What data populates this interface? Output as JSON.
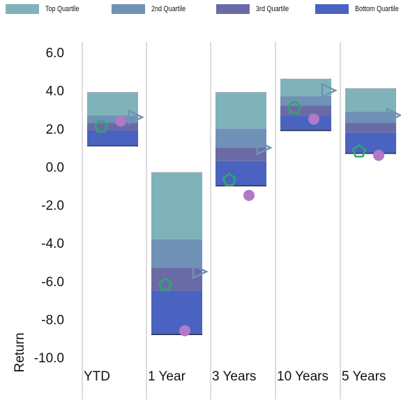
{
  "chart_data": {
    "type": "bar",
    "categories": [
      "YTD",
      "1 Year",
      "3 Years",
      "10 Years",
      "5 Years"
    ],
    "legend": [
      {
        "label": "Top Quartile",
        "color": "#7fb2b9"
      },
      {
        "label": "2nd Quartile",
        "color": "#6f92b6"
      },
      {
        "label": "3rd Quartile",
        "color": "#6a6ba6"
      },
      {
        "label": "Bottom Quartile",
        "color": "#4a63c0"
      }
    ],
    "quartile_bands": [
      {
        "category": "YTD",
        "top": 3.9,
        "q1_q2": 2.7,
        "median": 2.3,
        "q3_q4": 1.9,
        "bottom": 1.1
      },
      {
        "category": "1 Year",
        "top": -0.3,
        "q1_q2": -3.8,
        "median": -5.3,
        "q3_q4": -6.5,
        "bottom": -8.8
      },
      {
        "category": "3 Years",
        "top": 3.9,
        "q1_q2": 2.0,
        "median": 1.0,
        "q3_q4": 0.3,
        "bottom": -1.0
      },
      {
        "category": "10 Years",
        "top": 4.6,
        "q1_q2": 3.7,
        "median": 3.2,
        "q3_q4": 2.7,
        "bottom": 1.9
      },
      {
        "category": "5 Years",
        "top": 4.1,
        "q1_q2": 2.9,
        "median": 2.3,
        "q3_q4": 1.8,
        "bottom": 0.7
      }
    ],
    "markers": [
      {
        "shape": "pentagon",
        "color": "#2fa86a",
        "values": [
          2.1,
          -6.2,
          -0.7,
          3.1,
          0.8
        ]
      },
      {
        "shape": "circle",
        "color": "#b07ac8",
        "values": [
          2.4,
          -8.6,
          -1.5,
          2.5,
          0.6
        ]
      },
      {
        "shape": "triangle",
        "color": "#6f92b6",
        "values": [
          2.6,
          -5.5,
          1.0,
          4.0,
          2.7
        ]
      }
    ],
    "ylabel": "Return",
    "xlabel": "",
    "ylim": [
      -10.0,
      6.0
    ],
    "y_ticks": [
      "6.0",
      "4.0",
      "2.0",
      "0.0",
      "-2.0",
      "-4.0",
      "-6.0",
      "-8.0",
      "-10.0"
    ],
    "grid": "vertical",
    "legend_position": "top"
  }
}
